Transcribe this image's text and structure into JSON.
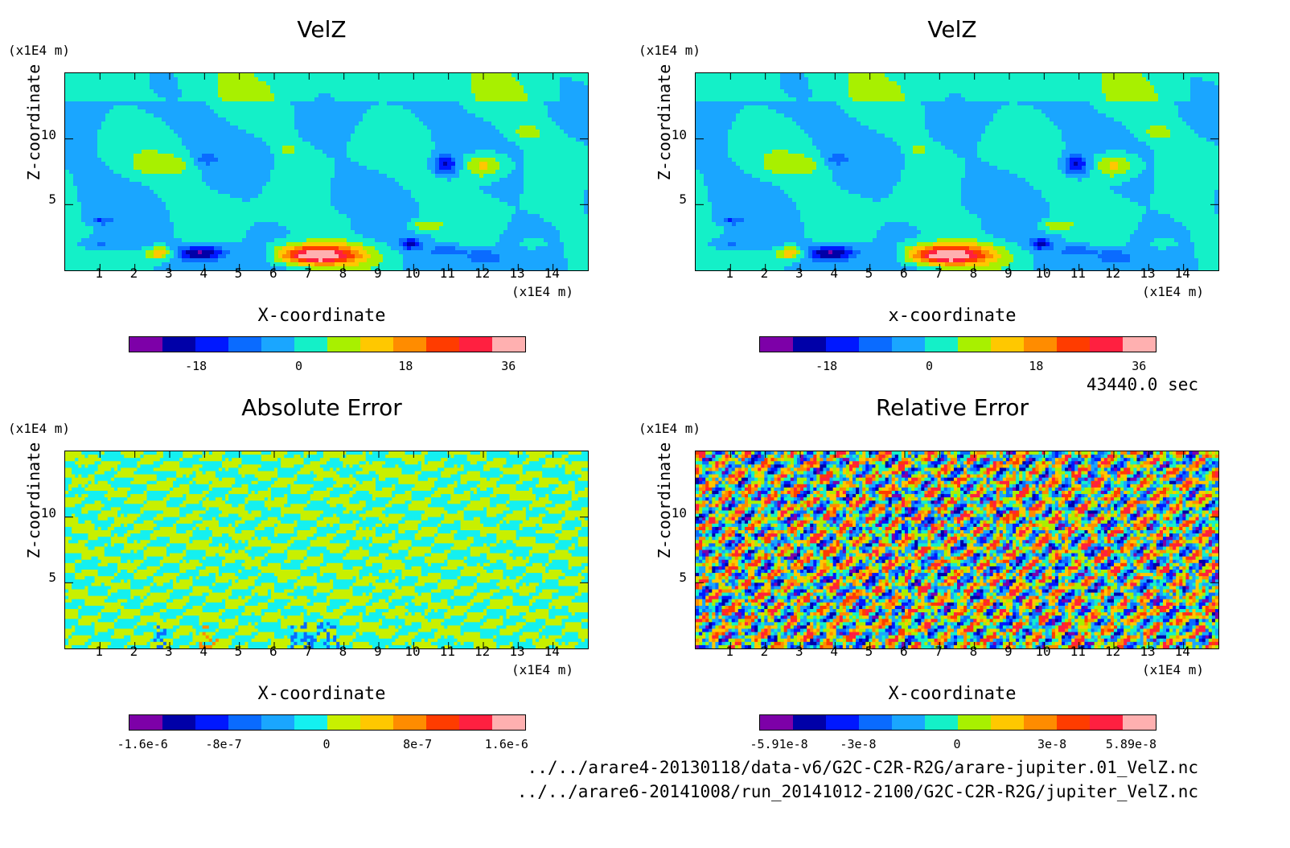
{
  "panels": [
    {
      "id": "velz-1",
      "title": "VelZ",
      "yunit": "(x1E4 m)",
      "xunit": "(x1E4 m)",
      "ylabel": "Z-coordinate",
      "xlabel": "X-coordinate",
      "yticks": [
        "5",
        "10"
      ],
      "xticks": [
        "1",
        "2",
        "3",
        "4",
        "5",
        "6",
        "7",
        "8",
        "9",
        "10",
        "11",
        "12",
        "13",
        "14"
      ],
      "colorbar": {
        "colors": [
          "#7d00a8",
          "#0000a8",
          "#0018ff",
          "#0a6bff",
          "#1aa6ff",
          "#14f0c8",
          "#a8f000",
          "#ffc800",
          "#ff8c00",
          "#ff3c00",
          "#ff2040",
          "#ffb0b0"
        ],
        "ticks": [
          "-18",
          "0",
          "18",
          "36"
        ]
      }
    },
    {
      "id": "velz-2",
      "title": "VelZ",
      "yunit": "(x1E4 m)",
      "xunit": "(x1E4 m)",
      "ylabel": "Z-coordinate",
      "xlabel": "x-coordinate",
      "yticks": [
        "5",
        "10"
      ],
      "xticks": [
        "1",
        "2",
        "3",
        "4",
        "5",
        "6",
        "7",
        "8",
        "9",
        "10",
        "11",
        "12",
        "13",
        "14"
      ],
      "colorbar": {
        "colors": [
          "#7d00a8",
          "#0000a8",
          "#0018ff",
          "#0a6bff",
          "#1aa6ff",
          "#14f0c8",
          "#a8f000",
          "#ffc800",
          "#ff8c00",
          "#ff3c00",
          "#ff2040",
          "#ffb0b0"
        ],
        "ticks": [
          "-18",
          "0",
          "18",
          "36"
        ]
      }
    },
    {
      "id": "abs-error",
      "title": "Absolute Error",
      "yunit": "(x1E4 m)",
      "xunit": "(x1E4 m)",
      "ylabel": "Z-coordinate",
      "xlabel": "X-coordinate",
      "yticks": [
        "5",
        "10"
      ],
      "xticks": [
        "1",
        "2",
        "3",
        "4",
        "5",
        "6",
        "7",
        "8",
        "9",
        "10",
        "11",
        "12",
        "13",
        "14"
      ],
      "colorbar": {
        "colors": [
          "#7d00a8",
          "#0000a8",
          "#0018ff",
          "#0a6bff",
          "#1aa6ff",
          "#14f0f0",
          "#c8f000",
          "#ffc800",
          "#ff8c00",
          "#ff3c00",
          "#ff2040",
          "#ffb0b0"
        ],
        "ticks": [
          "-1.6e-6",
          "-8e-7",
          "0",
          "8e-7",
          "1.6e-6"
        ]
      }
    },
    {
      "id": "rel-error",
      "title": "Relative Error",
      "yunit": "(x1E4 m)",
      "xunit": "(x1E4 m)",
      "ylabel": "Z-coordinate",
      "xlabel": "X-coordinate",
      "yticks": [
        "5",
        "10"
      ],
      "xticks": [
        "1",
        "2",
        "3",
        "4",
        "5",
        "6",
        "7",
        "8",
        "9",
        "10",
        "11",
        "12",
        "13",
        "14"
      ],
      "colorbar": {
        "colors": [
          "#7d00a8",
          "#0000a8",
          "#0018ff",
          "#0a6bff",
          "#1aa6ff",
          "#14f0c8",
          "#a8f000",
          "#ffc800",
          "#ff8c00",
          "#ff3c00",
          "#ff2040",
          "#ffb0b0"
        ],
        "ticks": [
          "-5.91e-8",
          "-3e-8",
          "0",
          "3e-8",
          "5.89e-8"
        ]
      }
    }
  ],
  "time_label": "43440.0 sec",
  "file_paths": [
    "../../arare4-20130118/data-v6/G2C-C2R-R2G/arare-jupiter.01_VelZ.nc",
    "../../arare6-20141008/run_20141012-2100/G2C-C2R-R2G/jupiter_VelZ.nc"
  ],
  "chart_data": [
    {
      "type": "heatmap",
      "title": "VelZ",
      "xlabel": "X-coordinate",
      "ylabel": "Z-coordinate",
      "xlim": [
        0,
        15
      ],
      "ylim": [
        0,
        15
      ],
      "colorbar_ticks": [
        -18,
        0,
        18,
        36
      ]
    },
    {
      "type": "heatmap",
      "title": "VelZ",
      "xlabel": "x-coordinate",
      "ylabel": "Z-coordinate",
      "xlim": [
        0,
        15
      ],
      "ylim": [
        0,
        15
      ],
      "colorbar_ticks": [
        -18,
        0,
        18,
        36
      ]
    },
    {
      "type": "heatmap",
      "title": "Absolute Error",
      "xlabel": "X-coordinate",
      "ylabel": "Z-coordinate",
      "xlim": [
        0,
        15
      ],
      "ylim": [
        0,
        15
      ],
      "colorbar_ticks": [
        -1.6e-06,
        -8e-07,
        0,
        8e-07,
        1.6e-06
      ]
    },
    {
      "type": "heatmap",
      "title": "Relative Error",
      "xlabel": "X-coordinate",
      "ylabel": "Z-coordinate",
      "xlim": [
        0,
        15
      ],
      "ylim": [
        0,
        15
      ],
      "colorbar_ticks": [
        -5.91e-08,
        -3e-08,
        0,
        3e-08,
        5.89e-08
      ]
    }
  ]
}
